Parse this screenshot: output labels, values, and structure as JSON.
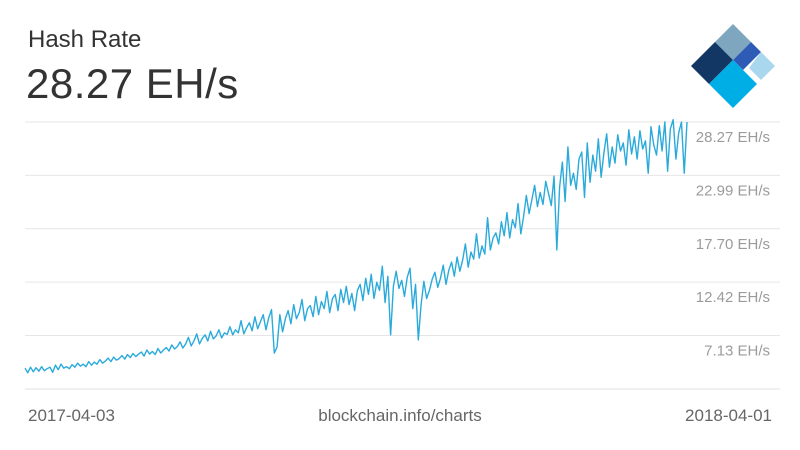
{
  "header": {
    "title": "Hash Rate",
    "current_value": "28.27 EH/s"
  },
  "logo": {
    "icon": "blockchain-logo-icon",
    "colors": [
      "#123765",
      "#7fa6bf",
      "#2e5bb6",
      "#00aee6",
      "#a9d8ee"
    ]
  },
  "footer": {
    "start_date": "2017-04-03",
    "source": "blockchain.info/charts",
    "end_date": "2018-04-01"
  },
  "chart_data": {
    "type": "line",
    "title": "",
    "xlabel": "",
    "ylabel": "",
    "x_range": [
      "2017-04-03",
      "2018-04-01"
    ],
    "y_ticks": [
      {
        "value": 7.13,
        "label": "7.13 EH/s"
      },
      {
        "value": 12.42,
        "label": "12.42 EH/s"
      },
      {
        "value": 17.7,
        "label": "17.70 EH/s"
      },
      {
        "value": 22.99,
        "label": "22.99 EH/s"
      },
      {
        "value": 28.27,
        "label": "28.27 EH/s"
      }
    ],
    "ylim": [
      1.84,
      28.27
    ],
    "grid": true,
    "line_color": "#2aaadb",
    "series": [
      {
        "values": [
          3.9,
          3.45,
          4.0,
          3.55,
          3.95,
          3.6,
          4.05,
          3.65,
          3.85,
          4.0,
          3.5,
          4.2,
          3.75,
          4.3,
          3.9,
          4.05,
          3.85,
          4.25,
          4.0,
          4.4,
          4.1,
          4.3,
          4.05,
          4.55,
          4.2,
          4.5,
          4.3,
          4.75,
          4.4,
          4.6,
          4.9,
          4.55,
          5.0,
          4.7,
          4.85,
          5.15,
          4.8,
          5.25,
          4.95,
          5.35,
          5.05,
          5.3,
          5.5,
          5.1,
          5.7,
          5.3,
          5.55,
          5.25,
          5.85,
          5.4,
          5.7,
          5.95,
          5.6,
          6.2,
          5.8,
          6.05,
          6.5,
          5.9,
          6.3,
          6.95,
          6.1,
          6.6,
          7.3,
          6.3,
          6.85,
          7.2,
          6.6,
          7.55,
          6.8,
          7.1,
          7.7,
          6.9,
          7.4,
          7.25,
          8.0,
          7.2,
          7.7,
          7.4,
          8.6,
          7.3,
          7.9,
          8.4,
          7.6,
          9.0,
          7.8,
          8.5,
          9.2,
          7.7,
          8.9,
          9.7,
          5.4,
          6.0,
          9.2,
          7.5,
          8.8,
          9.6,
          8.3,
          10.2,
          8.8,
          9.4,
          10.7,
          8.6,
          9.8,
          10.1,
          9.0,
          11.0,
          9.2,
          10.5,
          9.8,
          11.5,
          9.4,
          10.8,
          11.2,
          9.6,
          11.7,
          10.4,
          12.0,
          10.2,
          11.3,
          9.6,
          11.6,
          12.2,
          10.6,
          12.8,
          11.2,
          13.2,
          10.8,
          12.4,
          11.6,
          14.0,
          10.4,
          13.0,
          7.2,
          12.0,
          13.5,
          11.8,
          12.6,
          11.0,
          12.9,
          13.8,
          9.8,
          12.2,
          6.7,
          10.2,
          12.5,
          10.8,
          11.6,
          12.7,
          13.4,
          11.9,
          12.8,
          14.1,
          12.2,
          13.6,
          14.4,
          13.0,
          14.9,
          13.5,
          14.6,
          16.2,
          13.9,
          15.4,
          14.7,
          17.2,
          14.8,
          16.0,
          15.2,
          18.8,
          15.6,
          16.8,
          17.3,
          16.2,
          18.4,
          17.0,
          19.3,
          16.8,
          18.6,
          17.8,
          20.2,
          17.2,
          18.9,
          21.0,
          19.2,
          20.6,
          22.0,
          19.9,
          21.3,
          20.1,
          22.4,
          21.2,
          20.0,
          22.9,
          15.6,
          21.8,
          24.3,
          20.4,
          25.8,
          22.0,
          23.2,
          21.6,
          24.6,
          25.3,
          20.8,
          26.2,
          22.3,
          25.0,
          23.4,
          26.6,
          22.8,
          25.2,
          27.1,
          23.8,
          25.8,
          24.2,
          27.0,
          25.4,
          26.2,
          24.0,
          27.5,
          25.1,
          26.8,
          24.6,
          27.4,
          25.6,
          26.4,
          23.2,
          27.8,
          26.0,
          25.0,
          27.9,
          25.4,
          28.27,
          23.4,
          27.6,
          28.5,
          24.6,
          27.2,
          28.27,
          23.2,
          28.27
        ]
      }
    ]
  }
}
